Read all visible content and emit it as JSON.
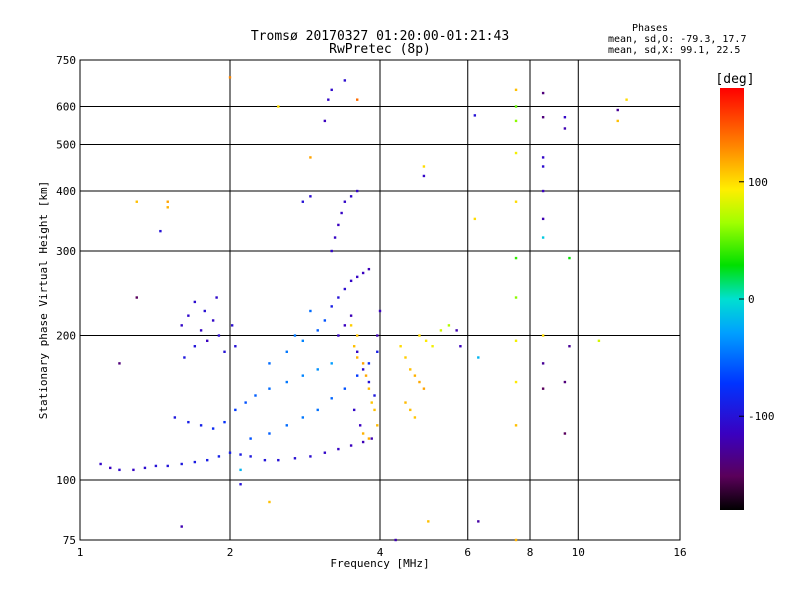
{
  "chart_data": {
    "type": "scatter",
    "title": "Tromsø 20170327 01:20:00-01:21:43",
    "subtitle": "RwPretec (8p)",
    "xlabel": "Frequency [MHz]",
    "ylabel": "Stationary phase Virtual Height [km]",
    "x_scale": "log",
    "y_scale": "log",
    "xlim": [
      1,
      16
    ],
    "ylim": [
      75,
      750
    ],
    "x_ticks": [
      "1",
      "2",
      "4",
      "6",
      "8",
      "10",
      "16"
    ],
    "x_tick_values": [
      1,
      2,
      4,
      6,
      8,
      10,
      16
    ],
    "y_ticks": [
      "75",
      "100",
      "200",
      "300",
      "400",
      "500",
      "600",
      "750"
    ],
    "y_tick_values": [
      75,
      100,
      200,
      300,
      400,
      500,
      600,
      750
    ],
    "grid": true,
    "phases": {
      "title": "Phases",
      "line_o": "mean, sd,O: -79.3, 17.7",
      "line_x": "mean, sd,X:  99.1, 22.5"
    },
    "colorbar": {
      "label": "[deg]",
      "range": [
        -180,
        180
      ],
      "ticks": [
        "100",
        "0",
        "-100"
      ],
      "tick_values": [
        100,
        0,
        -100
      ],
      "colormap": "rainbow"
    },
    "series": [
      {
        "points": [
          [
            1.1,
            108,
            -110
          ],
          [
            1.15,
            106,
            -115
          ],
          [
            1.2,
            105,
            -108
          ],
          [
            1.28,
            105,
            -112
          ],
          [
            1.35,
            106,
            -105
          ],
          [
            1.42,
            107,
            -100
          ],
          [
            1.5,
            107,
            -98
          ],
          [
            1.6,
            108,
            -95
          ],
          [
            1.7,
            109,
            -92
          ],
          [
            1.8,
            110,
            -90
          ],
          [
            1.9,
            112,
            -88
          ],
          [
            2.0,
            114,
            -90
          ],
          [
            2.1,
            113,
            -92
          ],
          [
            2.2,
            112,
            -95
          ],
          [
            2.35,
            110,
            -98
          ],
          [
            2.5,
            110,
            -100
          ],
          [
            2.7,
            111,
            -102
          ],
          [
            2.9,
            112,
            -105
          ],
          [
            3.1,
            114,
            -110
          ],
          [
            3.3,
            116,
            -112
          ],
          [
            3.5,
            118,
            -115
          ],
          [
            3.7,
            120,
            -118
          ],
          [
            3.85,
            122,
            -120
          ],
          [
            1.55,
            135,
            -95
          ],
          [
            1.65,
            132,
            -90
          ],
          [
            1.75,
            130,
            -88
          ],
          [
            1.85,
            128,
            -80
          ],
          [
            1.95,
            132,
            -75
          ],
          [
            2.05,
            140,
            -70
          ],
          [
            2.15,
            145,
            -60
          ],
          [
            2.25,
            150,
            -55
          ],
          [
            2.4,
            155,
            -50
          ],
          [
            2.6,
            160,
            -45
          ],
          [
            2.8,
            165,
            -40
          ],
          [
            3.0,
            170,
            -35
          ],
          [
            3.2,
            175,
            -30
          ],
          [
            2.2,
            122,
            -60
          ],
          [
            2.4,
            125,
            -55
          ],
          [
            2.6,
            130,
            -50
          ],
          [
            2.8,
            135,
            -45
          ],
          [
            3.0,
            140,
            -48
          ],
          [
            3.2,
            148,
            -52
          ],
          [
            3.4,
            155,
            -60
          ],
          [
            3.6,
            165,
            -70
          ],
          [
            3.8,
            175,
            -80
          ],
          [
            3.95,
            185,
            -90
          ],
          [
            1.6,
            210,
            -110
          ],
          [
            1.65,
            220,
            -108
          ],
          [
            1.7,
            235,
            -105
          ],
          [
            1.75,
            205,
            -112
          ],
          [
            1.8,
            195,
            -115
          ],
          [
            1.85,
            215,
            -110
          ],
          [
            1.9,
            200,
            -105
          ],
          [
            1.95,
            185,
            -100
          ],
          [
            1.62,
            180,
            -95
          ],
          [
            1.7,
            190,
            -98
          ],
          [
            1.78,
            225,
            -102
          ],
          [
            1.88,
            240,
            -108
          ],
          [
            2.02,
            210,
            -104
          ],
          [
            2.05,
            190,
            -100
          ],
          [
            2.4,
            175,
            -50
          ],
          [
            2.6,
            185,
            -45
          ],
          [
            2.8,
            195,
            -40
          ],
          [
            3.0,
            205,
            -55
          ],
          [
            3.1,
            215,
            -60
          ],
          [
            2.9,
            225,
            -50
          ],
          [
            2.7,
            200,
            -45
          ],
          [
            3.2,
            230,
            -90
          ],
          [
            3.3,
            240,
            -100
          ],
          [
            3.4,
            250,
            -105
          ],
          [
            3.5,
            260,
            -110
          ],
          [
            3.6,
            265,
            -112
          ],
          [
            3.7,
            270,
            -115
          ],
          [
            3.8,
            275,
            -118
          ],
          [
            3.2,
            300,
            -110
          ],
          [
            3.25,
            320,
            -112
          ],
          [
            3.3,
            340,
            -115
          ],
          [
            3.35,
            360,
            -112
          ],
          [
            3.4,
            380,
            -110
          ],
          [
            3.5,
            390,
            -108
          ],
          [
            3.6,
            400,
            -110
          ],
          [
            2.8,
            380,
            -100
          ],
          [
            2.9,
            390,
            -105
          ],
          [
            3.1,
            560,
            -115
          ],
          [
            3.15,
            620,
            -110
          ],
          [
            3.2,
            650,
            -108
          ],
          [
            3.4,
            680,
            -105
          ],
          [
            3.3,
            200,
            -112
          ],
          [
            3.4,
            210,
            -115
          ],
          [
            3.5,
            220,
            -118
          ],
          [
            3.6,
            185,
            -110
          ],
          [
            3.7,
            170,
            -105
          ],
          [
            3.8,
            160,
            -100
          ],
          [
            3.9,
            150,
            -95
          ],
          [
            3.95,
            200,
            -120
          ],
          [
            4.0,
            225,
            -115
          ],
          [
            3.55,
            140,
            -110
          ],
          [
            3.65,
            130,
            -115
          ],
          [
            3.55,
            190,
            110
          ],
          [
            3.6,
            180,
            115
          ],
          [
            3.7,
            175,
            120
          ],
          [
            3.75,
            165,
            118
          ],
          [
            3.8,
            155,
            112
          ],
          [
            3.85,
            145,
            108
          ],
          [
            3.9,
            140,
            110
          ],
          [
            3.95,
            130,
            112
          ],
          [
            3.7,
            125,
            115
          ],
          [
            3.8,
            122,
            118
          ],
          [
            3.6,
            200,
            108
          ],
          [
            3.5,
            210,
            105
          ],
          [
            4.4,
            190,
            100
          ],
          [
            4.5,
            180,
            105
          ],
          [
            4.6,
            170,
            110
          ],
          [
            4.7,
            165,
            115
          ],
          [
            4.8,
            160,
            118
          ],
          [
            4.9,
            155,
            120
          ],
          [
            4.5,
            145,
            112
          ],
          [
            4.6,
            140,
            110
          ],
          [
            4.7,
            135,
            108
          ],
          [
            4.8,
            200,
            100
          ],
          [
            4.95,
            195,
            95
          ],
          [
            5.1,
            190,
            90
          ],
          [
            5.3,
            205,
            80
          ],
          [
            5.5,
            210,
            70
          ],
          [
            5.7,
            205,
            -120
          ],
          [
            5.8,
            190,
            -115
          ],
          [
            1.3,
            380,
            110
          ],
          [
            1.5,
            370,
            115
          ],
          [
            2.0,
            690,
            130
          ],
          [
            2.5,
            600,
            100
          ],
          [
            2.9,
            470,
            120
          ],
          [
            3.6,
            620,
            140
          ],
          [
            4.9,
            450,
            100
          ],
          [
            4.9,
            430,
            -110
          ],
          [
            6.2,
            575,
            -100
          ],
          [
            6.2,
            350,
            100
          ],
          [
            6.3,
            180,
            -20
          ],
          [
            6.3,
            82,
            -125
          ],
          [
            7.5,
            650,
            110
          ],
          [
            7.5,
            600,
            50
          ],
          [
            7.5,
            560,
            60
          ],
          [
            7.5,
            480,
            90
          ],
          [
            7.5,
            380,
            100
          ],
          [
            7.5,
            290,
            40
          ],
          [
            7.5,
            240,
            60
          ],
          [
            7.5,
            195,
            90
          ],
          [
            7.5,
            160,
            95
          ],
          [
            7.5,
            130,
            110
          ],
          [
            7.5,
            75,
            115
          ],
          [
            8.5,
            640,
            -140
          ],
          [
            8.5,
            570,
            -140
          ],
          [
            8.5,
            470,
            -110
          ],
          [
            8.5,
            450,
            -105
          ],
          [
            8.5,
            400,
            -115
          ],
          [
            8.5,
            350,
            -120
          ],
          [
            8.5,
            320,
            -10
          ],
          [
            8.5,
            200,
            100
          ],
          [
            8.5,
            175,
            -130
          ],
          [
            8.5,
            155,
            -150
          ],
          [
            9.4,
            570,
            -110
          ],
          [
            9.4,
            540,
            -120
          ],
          [
            9.6,
            290,
            30
          ],
          [
            9.6,
            190,
            -130
          ],
          [
            9.4,
            160,
            -140
          ],
          [
            9.4,
            125,
            -150
          ],
          [
            11.0,
            195,
            80
          ],
          [
            12.0,
            590,
            -130
          ],
          [
            12.0,
            560,
            110
          ],
          [
            12.5,
            620,
            100
          ],
          [
            1.2,
            175,
            -140
          ],
          [
            1.3,
            240,
            -150
          ],
          [
            1.5,
            380,
            120
          ],
          [
            1.45,
            330,
            -100
          ],
          [
            1.6,
            80,
            -120
          ],
          [
            2.1,
            98,
            -100
          ],
          [
            2.1,
            105,
            -20
          ],
          [
            2.4,
            90,
            110
          ],
          [
            5.0,
            82,
            110
          ],
          [
            4.3,
            75,
            -120
          ]
        ]
      }
    ]
  }
}
